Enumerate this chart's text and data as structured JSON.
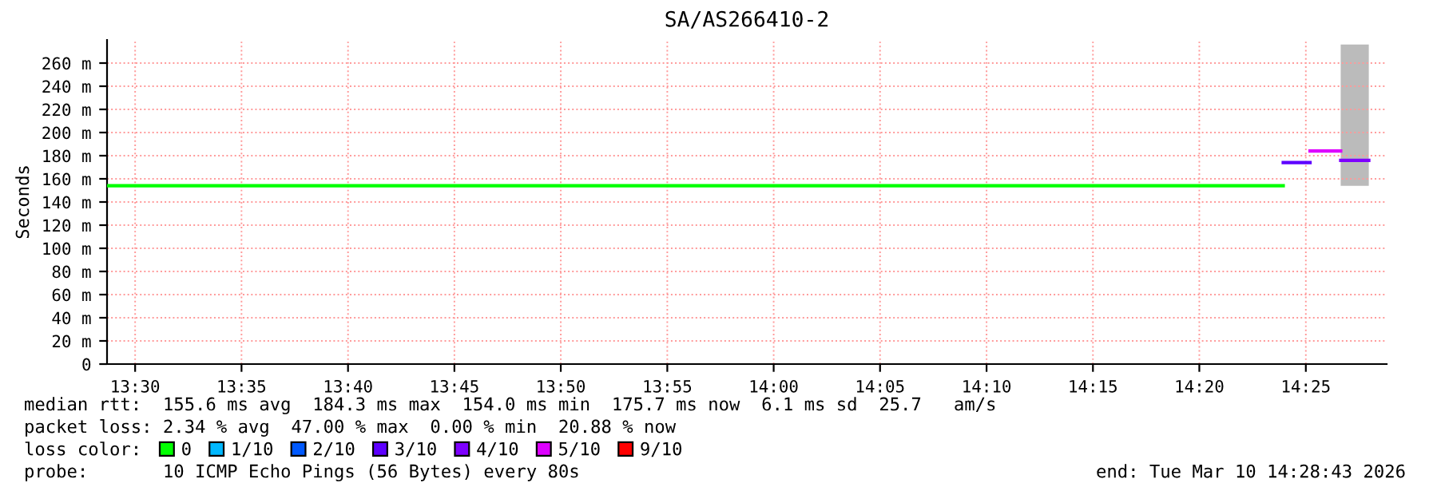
{
  "chart_data": {
    "type": "step",
    "title": "SA/AS266410-2",
    "ylabel": "Seconds",
    "xlim": [
      13.478,
      14.48
    ],
    "ylim": [
      0,
      280
    ],
    "xticks": [
      {
        "value": 13.5,
        "label": "13:30"
      },
      {
        "value": 13.5833,
        "label": "13:35"
      },
      {
        "value": 13.6667,
        "label": "13:40"
      },
      {
        "value": 13.75,
        "label": "13:45"
      },
      {
        "value": 13.8333,
        "label": "13:50"
      },
      {
        "value": 13.9167,
        "label": "13:55"
      },
      {
        "value": 14.0,
        "label": "14:00"
      },
      {
        "value": 14.0833,
        "label": "14:05"
      },
      {
        "value": 14.1667,
        "label": "14:10"
      },
      {
        "value": 14.25,
        "label": "14:15"
      },
      {
        "value": 14.3333,
        "label": "14:20"
      },
      {
        "value": 14.4167,
        "label": "14:25"
      }
    ],
    "yticks": [
      0,
      {
        "value": 20,
        "label": "20 m"
      },
      {
        "value": 40,
        "label": "40 m"
      },
      {
        "value": 60,
        "label": "60 m"
      },
      {
        "value": 80,
        "label": "80 m"
      },
      {
        "value": 100,
        "label": "100 m"
      },
      {
        "value": 120,
        "label": "120 m"
      },
      {
        "value": 140,
        "label": "140 m"
      },
      {
        "value": 160,
        "label": "160 m"
      },
      {
        "value": 180,
        "label": "180 m"
      },
      {
        "value": 200,
        "label": "200 m"
      },
      {
        "value": 220,
        "label": "220 m"
      },
      {
        "value": 240,
        "label": "240 m"
      },
      {
        "value": 260,
        "label": "260 m"
      }
    ],
    "grid": true,
    "legend": "bottom",
    "legend_title": "loss color:",
    "series": [
      {
        "name": "0",
        "color": "#00ff00",
        "x": [
          13.478,
          14.399
        ],
        "values": [
          154,
          154
        ]
      },
      {
        "name": "1/10",
        "color": "#00b8ff"
      },
      {
        "name": "2/10",
        "color": "#0059ff"
      },
      {
        "name": "3/10",
        "color": "#5e00ff",
        "x": [
          14.399,
          14.42
        ],
        "values": [
          174,
          174
        ]
      },
      {
        "name": "4/10",
        "color": "#7e00ff",
        "x": [
          14.444,
          14.466
        ],
        "values": [
          176,
          176
        ],
        "lower": [
          154,
          154
        ],
        "upper": [
          276,
          276
        ]
      },
      {
        "name": "5/10",
        "color": "#dd00ff",
        "x": [
          14.42,
          14.444
        ],
        "values": [
          184,
          184
        ]
      },
      {
        "name": "9/10",
        "color": "#ff0000"
      }
    ],
    "annotations": [
      "median rtt:  155.6 ms avg  184.3 ms max  154.0 ms min  175.7 ms now  6.1 ms sd  25.7   am/s",
      "packet loss: 2.34 % avg  47.00 % max  0.00 % min  20.88 % now",
      "probe:       10 ICMP Echo Pings (56 Bytes) every 80s",
      "end: Tue Mar 10 14:28:43 2026"
    ]
  }
}
